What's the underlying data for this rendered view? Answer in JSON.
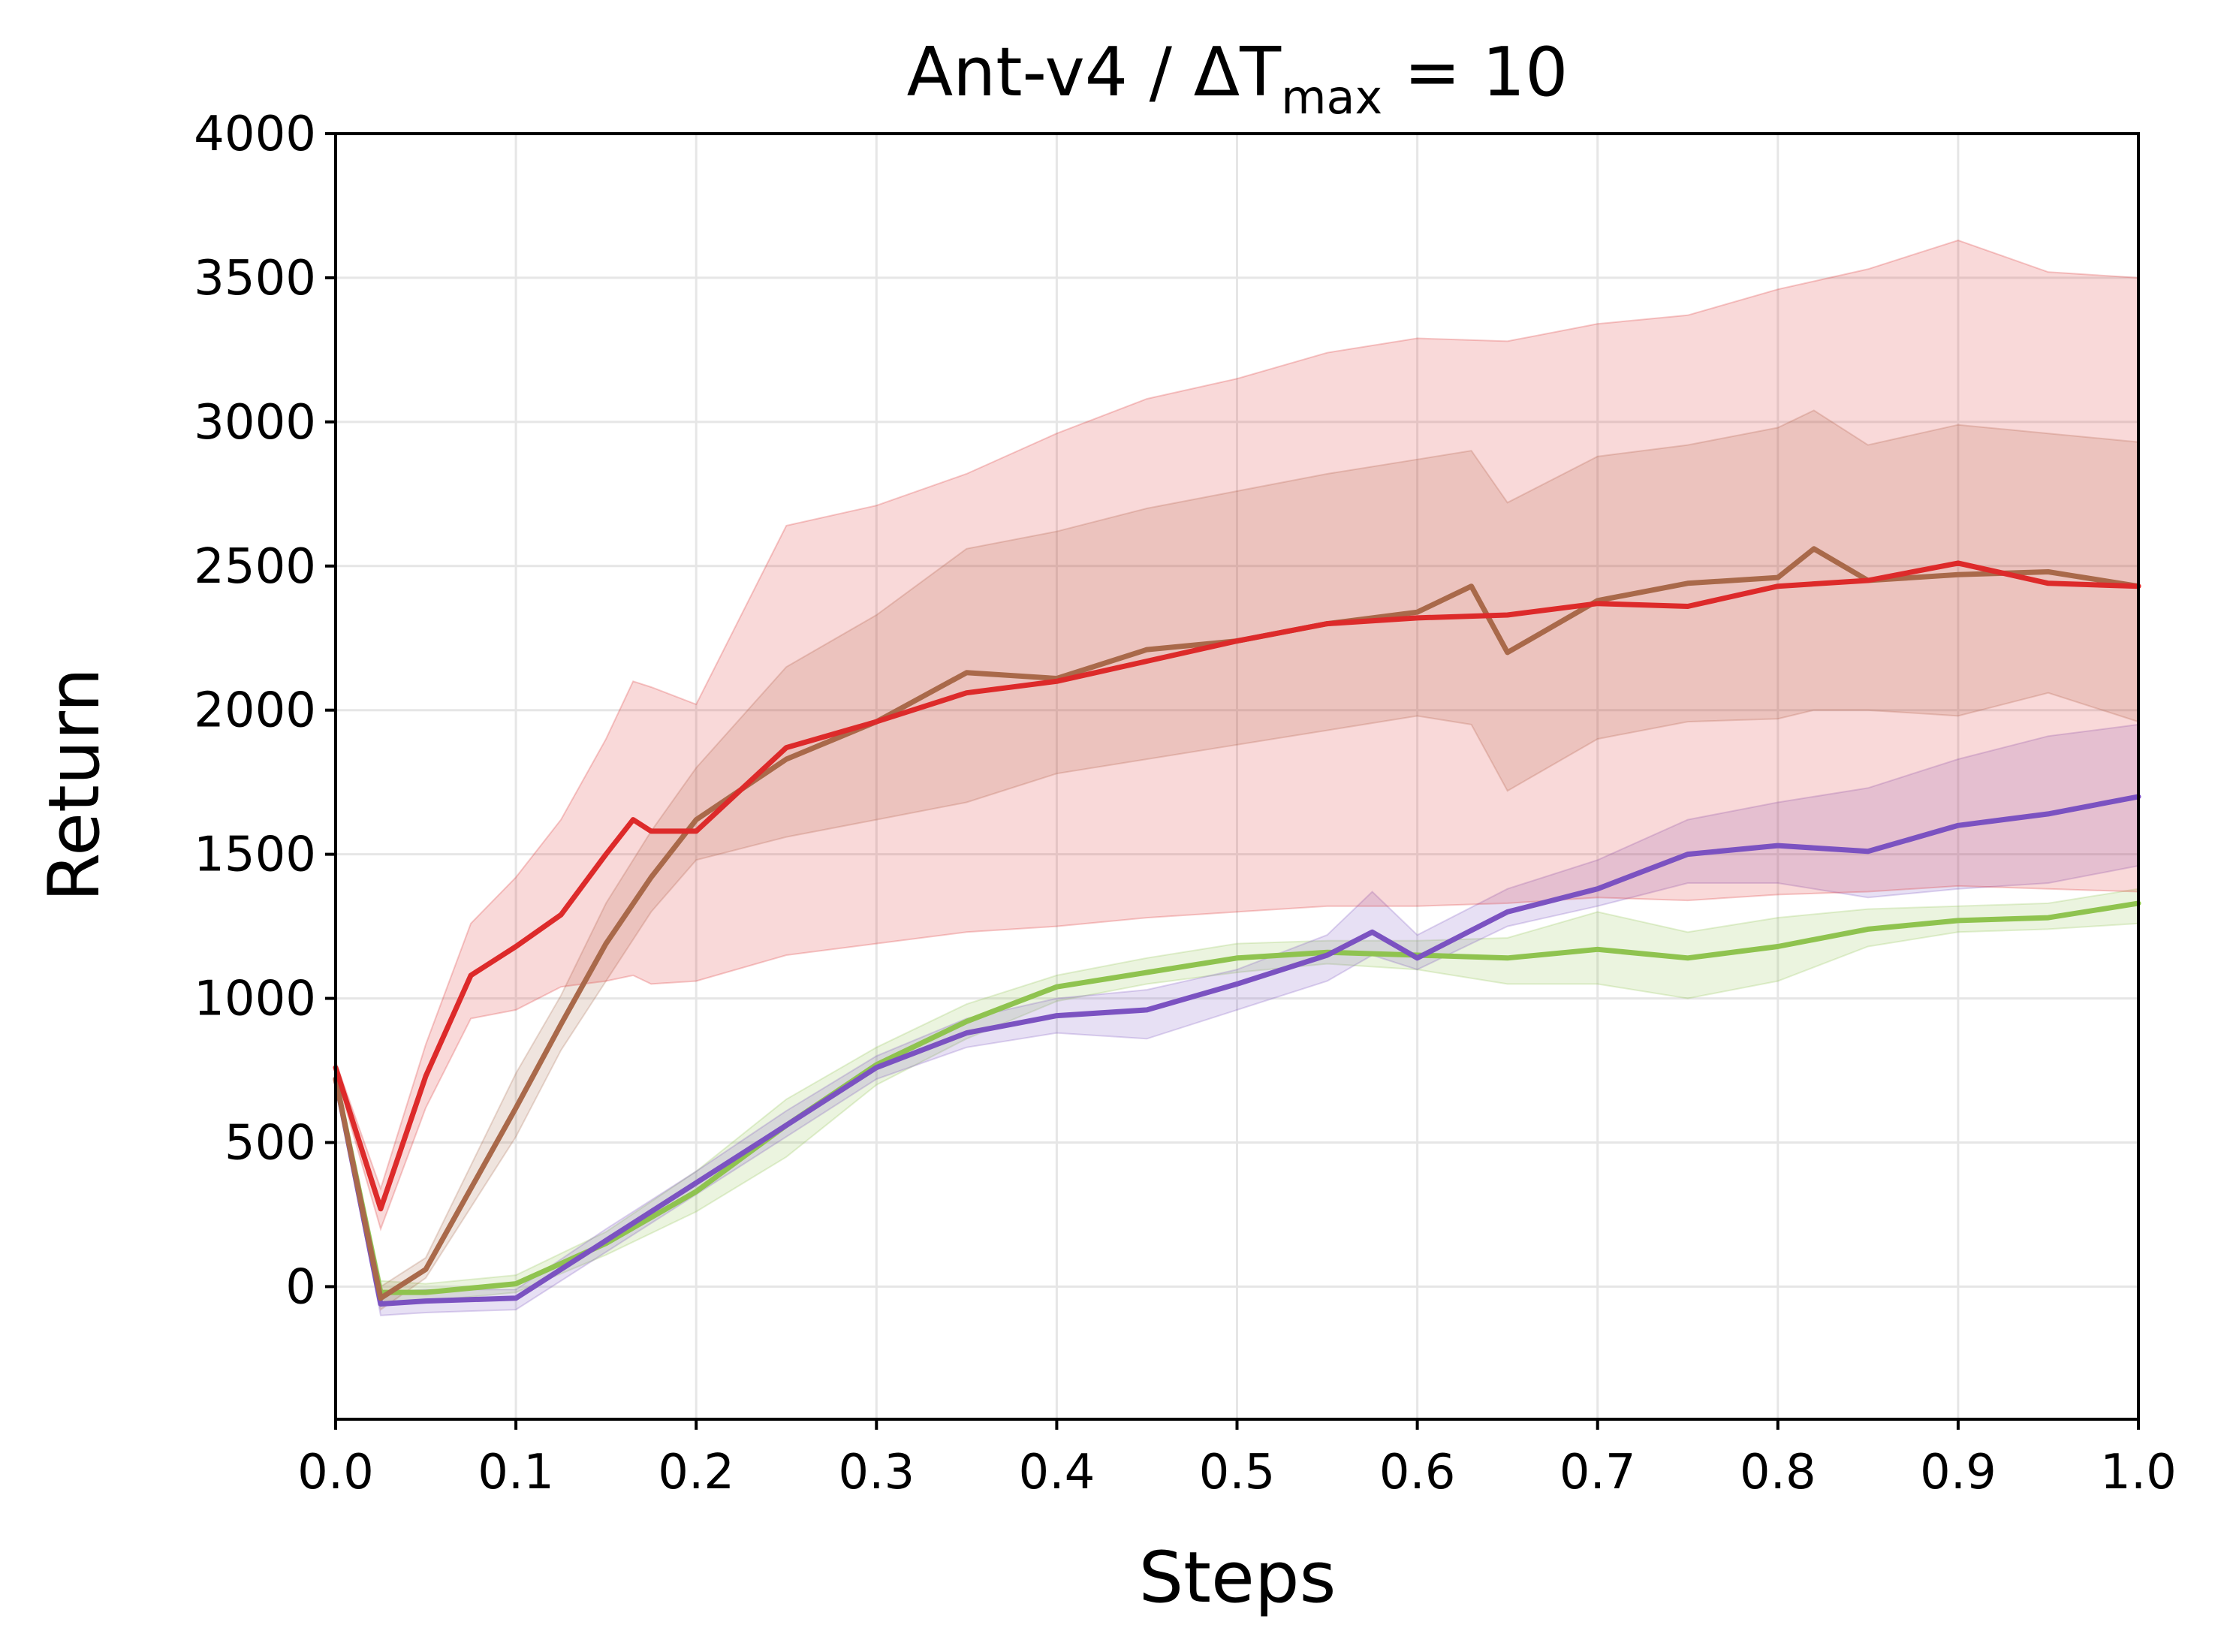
{
  "chart_data": {
    "type": "line",
    "title": {
      "prefix": "Ant-v4 / ΔT",
      "subscript": "max",
      "suffix": " = 10"
    },
    "xlabel": "Steps",
    "ylabel": "Return",
    "xlim": [
      0.0,
      1.0
    ],
    "ylim": [
      -460,
      4000
    ],
    "xticks": [
      0.0,
      0.1,
      0.2,
      0.3,
      0.4,
      0.5,
      0.6,
      0.7,
      0.8,
      0.9,
      1.0
    ],
    "xtick_labels": [
      "0.0",
      "0.1",
      "0.2",
      "0.3",
      "0.4",
      "0.5",
      "0.6",
      "0.7",
      "0.8",
      "0.9",
      "1.0"
    ],
    "yticks": [
      0,
      500,
      1000,
      1500,
      2000,
      2500,
      3000,
      3500,
      4000
    ],
    "ytick_labels": [
      "0",
      "500",
      "1000",
      "1500",
      "2000",
      "2500",
      "3000",
      "3500",
      "4000"
    ],
    "grid": true,
    "legend": "none",
    "series": [
      {
        "color": "#8fc34f",
        "x": [
          0.0,
          0.025,
          0.05,
          0.1,
          0.15,
          0.2,
          0.25,
          0.3,
          0.35,
          0.4,
          0.45,
          0.5,
          0.55,
          0.6,
          0.65,
          0.7,
          0.75,
          0.8,
          0.85,
          0.9,
          0.95,
          1.0
        ],
        "y": [
          720,
          -20,
          -20,
          10,
          150,
          330,
          560,
          770,
          920,
          1040,
          1090,
          1140,
          1160,
          1150,
          1140,
          1170,
          1140,
          1180,
          1240,
          1270,
          1280,
          1330
        ],
        "lower": [
          700,
          -60,
          -50,
          -20,
          110,
          260,
          450,
          700,
          860,
          990,
          1050,
          1090,
          1120,
          1100,
          1050,
          1050,
          1000,
          1060,
          1180,
          1230,
          1240,
          1260
        ],
        "upper": [
          740,
          20,
          10,
          40,
          190,
          400,
          650,
          830,
          980,
          1080,
          1140,
          1190,
          1200,
          1200,
          1210,
          1300,
          1230,
          1280,
          1310,
          1320,
          1330,
          1380
        ]
      },
      {
        "color": "#7b52c1",
        "x": [
          0.0,
          0.025,
          0.05,
          0.1,
          0.15,
          0.2,
          0.25,
          0.3,
          0.35,
          0.4,
          0.45,
          0.5,
          0.55,
          0.575,
          0.6,
          0.65,
          0.7,
          0.75,
          0.8,
          0.85,
          0.9,
          0.95,
          1.0
        ],
        "y": [
          720,
          -60,
          -50,
          -40,
          160,
          360,
          560,
          760,
          880,
          940,
          960,
          1050,
          1150,
          1230,
          1140,
          1300,
          1380,
          1500,
          1530,
          1510,
          1600,
          1640,
          1700
        ],
        "lower": [
          700,
          -100,
          -90,
          -80,
          120,
          320,
          520,
          720,
          830,
          880,
          860,
          960,
          1060,
          1150,
          1100,
          1250,
          1320,
          1400,
          1400,
          1350,
          1380,
          1400,
          1460
        ],
        "upper": [
          740,
          -20,
          -10,
          -10,
          200,
          400,
          610,
          800,
          930,
          1000,
          1030,
          1100,
          1220,
          1370,
          1220,
          1380,
          1480,
          1620,
          1680,
          1730,
          1830,
          1910,
          1950
        ]
      },
      {
        "color": "#a9694a",
        "x": [
          0.0,
          0.025,
          0.05,
          0.1,
          0.125,
          0.15,
          0.175,
          0.2,
          0.25,
          0.3,
          0.35,
          0.4,
          0.45,
          0.5,
          0.55,
          0.6,
          0.63,
          0.65,
          0.7,
          0.75,
          0.8,
          0.82,
          0.85,
          0.9,
          0.95,
          1.0
        ],
        "y": [
          720,
          -40,
          60,
          620,
          910,
          1190,
          1420,
          1620,
          1830,
          1960,
          2130,
          2110,
          2210,
          2240,
          2300,
          2340,
          2430,
          2200,
          2380,
          2440,
          2460,
          2560,
          2450,
          2470,
          2480,
          2430
        ],
        "lower": [
          700,
          -80,
          30,
          520,
          820,
          1060,
          1300,
          1480,
          1560,
          1620,
          1680,
          1780,
          1830,
          1880,
          1930,
          1980,
          1950,
          1720,
          1900,
          1960,
          1970,
          2000,
          2000,
          1980,
          2060,
          1960
        ],
        "upper": [
          740,
          0,
          100,
          740,
          1010,
          1330,
          1580,
          1800,
          2150,
          2330,
          2560,
          2620,
          2700,
          2760,
          2820,
          2870,
          2900,
          2720,
          2880,
          2920,
          2980,
          3040,
          2920,
          2990,
          2960,
          2930
        ]
      },
      {
        "color": "#dd2a2a",
        "x": [
          0.0,
          0.025,
          0.05,
          0.075,
          0.1,
          0.125,
          0.15,
          0.165,
          0.175,
          0.2,
          0.25,
          0.3,
          0.35,
          0.4,
          0.45,
          0.5,
          0.55,
          0.6,
          0.65,
          0.7,
          0.75,
          0.8,
          0.85,
          0.9,
          0.95,
          1.0
        ],
        "y": [
          760,
          270,
          730,
          1080,
          1180,
          1290,
          1500,
          1620,
          1580,
          1580,
          1870,
          1960,
          2060,
          2100,
          2170,
          2240,
          2300,
          2320,
          2330,
          2370,
          2360,
          2430,
          2450,
          2510,
          2440,
          2430
        ],
        "lower": [
          740,
          200,
          620,
          930,
          960,
          1040,
          1060,
          1080,
          1050,
          1060,
          1150,
          1190,
          1230,
          1250,
          1280,
          1300,
          1320,
          1320,
          1330,
          1350,
          1340,
          1360,
          1370,
          1390,
          1380,
          1370
        ],
        "upper": [
          780,
          340,
          840,
          1260,
          1420,
          1620,
          1900,
          2100,
          2080,
          2020,
          2640,
          2710,
          2820,
          2960,
          3080,
          3150,
          3240,
          3290,
          3280,
          3340,
          3370,
          3460,
          3530,
          3630,
          3520,
          3500
        ]
      }
    ]
  }
}
